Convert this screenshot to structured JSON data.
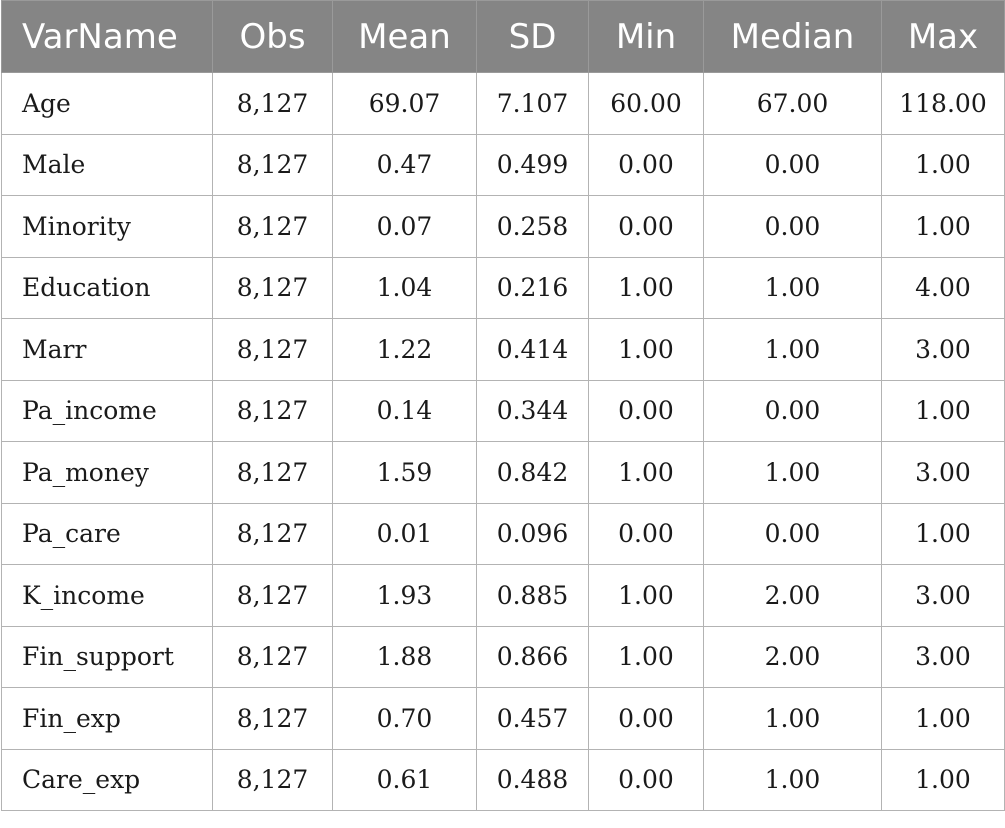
{
  "table": {
    "headers": [
      "VarName",
      "Obs",
      "Mean",
      "SD",
      "Min",
      "Median",
      "Max"
    ],
    "rows": [
      [
        "Age",
        "8,127",
        "69.07",
        "7.107",
        "60.00",
        "67.00",
        "118.00"
      ],
      [
        "Male",
        "8,127",
        "0.47",
        "0.499",
        "0.00",
        "0.00",
        "1.00"
      ],
      [
        "Minority",
        "8,127",
        "0.07",
        "0.258",
        "0.00",
        "0.00",
        "1.00"
      ],
      [
        "Education",
        "8,127",
        "1.04",
        "0.216",
        "1.00",
        "1.00",
        "4.00"
      ],
      [
        "Marr",
        "8,127",
        "1.22",
        "0.414",
        "1.00",
        "1.00",
        "3.00"
      ],
      [
        "Pa_income",
        "8,127",
        "0.14",
        "0.344",
        "0.00",
        "0.00",
        "1.00"
      ],
      [
        "Pa_money",
        "8,127",
        "1.59",
        "0.842",
        "1.00",
        "1.00",
        "3.00"
      ],
      [
        "Pa_care",
        "8,127",
        "0.01",
        "0.096",
        "0.00",
        "0.00",
        "1.00"
      ],
      [
        "K_income",
        "8,127",
        "1.93",
        "0.885",
        "1.00",
        "2.00",
        "3.00"
      ],
      [
        "Fin_support",
        "8,127",
        "1.88",
        "0.866",
        "1.00",
        "2.00",
        "3.00"
      ],
      [
        "Fin_exp",
        "8,127",
        "0.70",
        "0.457",
        "0.00",
        "1.00",
        "1.00"
      ],
      [
        "Care_exp",
        "8,127",
        "0.61",
        "0.488",
        "0.00",
        "1.00",
        "1.00"
      ]
    ]
  }
}
